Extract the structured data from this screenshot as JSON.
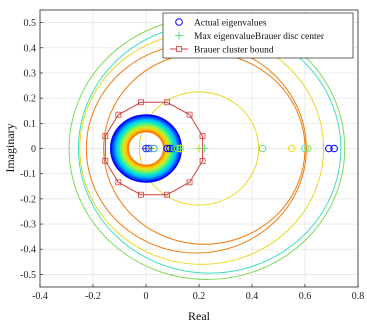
{
  "chart_data": {
    "type": "scatter",
    "xlabel": "Real",
    "ylabel": "Imaginary",
    "xlim": [
      -0.4,
      0.8
    ],
    "ylim": [
      -0.55,
      0.55
    ],
    "x_ticks": [
      -0.4,
      -0.2,
      0,
      0.2,
      0.4,
      0.6,
      0.8
    ],
    "y_ticks": [
      -0.5,
      -0.4,
      -0.3,
      -0.2,
      -0.1,
      0,
      0.1,
      0.2,
      0.3,
      0.4,
      0.5
    ],
    "grid": true,
    "legend_position": "top-right",
    "legend": [
      {
        "label": "Actual eigenvalues",
        "marker": "circle",
        "color": "#0000ff"
      },
      {
        "label": "Max eigenvalueBrauer disc center",
        "marker": "plus",
        "color": "#66dd88"
      },
      {
        "label": "Brauer cluster bound",
        "marker": "square",
        "color": "#d04040"
      }
    ],
    "series": [
      {
        "name": "Actual eigenvalues",
        "marker": "circle",
        "color": "#0000ff",
        "points": [
          {
            "x": 0.0,
            "y": 0,
            "color": "#2233ee"
          },
          {
            "x": 0.01,
            "y": 0,
            "color": "#2244dd"
          },
          {
            "x": 0.03,
            "y": 0,
            "color": "#22aadd"
          },
          {
            "x": 0.08,
            "y": 0,
            "color": "#0000ff"
          },
          {
            "x": 0.09,
            "y": 0,
            "color": "#0000ff"
          },
          {
            "x": 0.1,
            "y": 0,
            "color": "#0022ee"
          },
          {
            "x": 0.11,
            "y": 0,
            "color": "#22ccaa"
          },
          {
            "x": 0.12,
            "y": 0,
            "color": "#88dd44"
          },
          {
            "x": 0.13,
            "y": 0,
            "color": "#ccdd22"
          },
          {
            "x": 0.44,
            "y": 0,
            "color": "#66dd88"
          },
          {
            "x": 0.55,
            "y": 0,
            "color": "#e6d820"
          },
          {
            "x": 0.6,
            "y": 0,
            "color": "#44ddcc"
          },
          {
            "x": 0.61,
            "y": 0,
            "color": "#aadd33"
          },
          {
            "x": 0.69,
            "y": 0,
            "color": "#0000ff"
          },
          {
            "x": 0.71,
            "y": 0,
            "color": "#0000ff"
          }
        ]
      },
      {
        "name": "Max eigenvalueBrauer disc center",
        "marker": "plus",
        "color": "#66dd88",
        "points": [
          {
            "x": 0.0,
            "y": 0,
            "color": "#3355ee"
          },
          {
            "x": 0.02,
            "y": 0,
            "color": "#ffaa00"
          },
          {
            "x": 0.13,
            "y": 0,
            "color": "#66dd88"
          },
          {
            "x": 0.2,
            "y": 0,
            "color": "#aadd33"
          },
          {
            "x": 0.22,
            "y": 0,
            "color": "#66dd88"
          }
        ]
      },
      {
        "name": "Brauer cluster bound",
        "marker": "square",
        "color": "#d04040",
        "center": [
          0.03,
          0
        ],
        "radius": 0.19,
        "vertex_count": 12
      }
    ],
    "brauer_discs": [
      {
        "cx": 0.23,
        "r": 0.52,
        "color": "#7ed957"
      },
      {
        "cx": 0.24,
        "r": 0.495,
        "color": "#40e0c0"
      },
      {
        "cx": 0.21,
        "r": 0.46,
        "color": "#e6d820"
      },
      {
        "cx": 0.19,
        "r": 0.415,
        "color": "#f07a10"
      },
      {
        "cx": 0.22,
        "r": 0.38,
        "color": "#f07a10"
      },
      {
        "cx": 0.2,
        "r": 0.225,
        "color": "#e6d820"
      },
      {
        "cx": 0.0,
        "r": 0.08,
        "color": "#f07a10"
      }
    ],
    "concentric_bands": {
      "cx": 0.0,
      "r_outer": 0.135,
      "r_inner": 0.065,
      "colors": [
        "#0000ff",
        "#0040ff",
        "#0080ff",
        "#00c0ff",
        "#00e0d0",
        "#30f0a0",
        "#70f070",
        "#b0f030",
        "#e0e020",
        "#ffc000",
        "#ff8000"
      ]
    }
  }
}
